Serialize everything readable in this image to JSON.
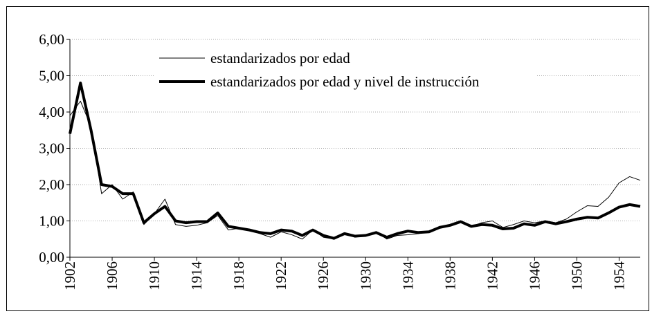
{
  "chart_data": {
    "type": "line",
    "x": [
      1902,
      1903,
      1904,
      1905,
      1906,
      1907,
      1908,
      1909,
      1910,
      1911,
      1912,
      1913,
      1914,
      1915,
      1916,
      1917,
      1918,
      1919,
      1920,
      1921,
      1922,
      1923,
      1924,
      1925,
      1926,
      1927,
      1928,
      1929,
      1930,
      1931,
      1932,
      1933,
      1934,
      1935,
      1936,
      1937,
      1938,
      1939,
      1940,
      1941,
      1942,
      1943,
      1944,
      1945,
      1946,
      1947,
      1948,
      1949,
      1950,
      1951,
      1952,
      1953,
      1954,
      1955,
      1956
    ],
    "series": [
      {
        "name": "estandarizados por edad",
        "color": "#000000",
        "width": 1,
        "values": [
          3.9,
          4.3,
          3.6,
          1.75,
          2.0,
          1.6,
          1.8,
          0.9,
          1.2,
          1.6,
          0.9,
          0.85,
          0.88,
          0.95,
          1.15,
          0.75,
          0.8,
          0.75,
          0.65,
          0.55,
          0.7,
          0.62,
          0.5,
          0.75,
          0.55,
          0.5,
          0.65,
          0.55,
          0.6,
          0.7,
          0.5,
          0.6,
          0.62,
          0.65,
          0.7,
          0.85,
          0.9,
          1.0,
          0.85,
          0.95,
          1.0,
          0.82,
          0.9,
          1.0,
          0.95,
          1.0,
          0.95,
          1.05,
          1.25,
          1.42,
          1.4,
          1.65,
          2.05,
          2.22,
          2.12
        ]
      },
      {
        "name": "estandarizados por edad y nivel de instrucción",
        "color": "#000000",
        "width": 4,
        "values": [
          3.4,
          4.8,
          3.5,
          2.0,
          1.95,
          1.75,
          1.75,
          0.95,
          1.2,
          1.4,
          1.0,
          0.95,
          0.98,
          0.98,
          1.22,
          0.85,
          0.8,
          0.75,
          0.68,
          0.65,
          0.75,
          0.72,
          0.6,
          0.75,
          0.6,
          0.52,
          0.65,
          0.58,
          0.6,
          0.68,
          0.55,
          0.65,
          0.72,
          0.68,
          0.7,
          0.82,
          0.88,
          0.98,
          0.85,
          0.9,
          0.88,
          0.78,
          0.8,
          0.92,
          0.88,
          0.98,
          0.92,
          0.98,
          1.05,
          1.1,
          1.08,
          1.22,
          1.38,
          1.45,
          1.4
        ]
      }
    ],
    "xlim": [
      1902,
      1956
    ],
    "xticks": [
      1902,
      1906,
      1910,
      1914,
      1918,
      1922,
      1926,
      1930,
      1934,
      1938,
      1942,
      1946,
      1950,
      1954
    ],
    "ylim": [
      0,
      6
    ],
    "yticks": [
      {
        "value": 0,
        "label": "0,00"
      },
      {
        "value": 1,
        "label": "1,00"
      },
      {
        "value": 2,
        "label": "2,00"
      },
      {
        "value": 3,
        "label": "3,00"
      },
      {
        "value": 4,
        "label": "4,00"
      },
      {
        "value": 5,
        "label": "5,00"
      },
      {
        "value": 6,
        "label": "6,00"
      }
    ],
    "grid": true
  }
}
